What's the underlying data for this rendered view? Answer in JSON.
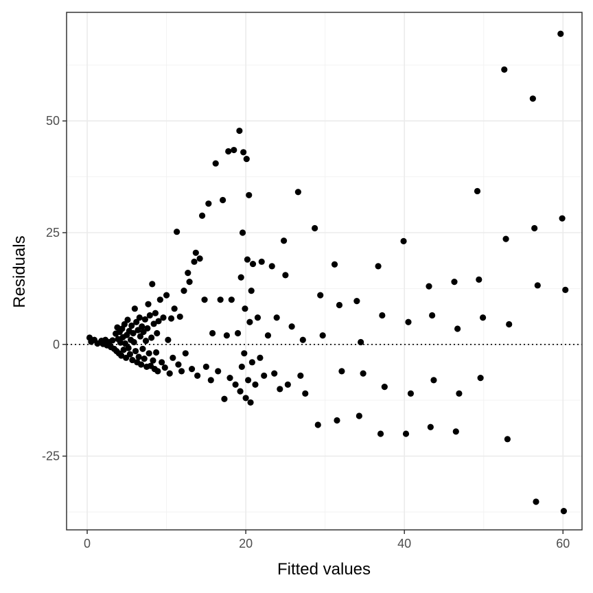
{
  "chart_data": {
    "type": "scatter",
    "title": "",
    "xlabel": "Fitted values",
    "ylabel": "Residuals",
    "xlim": [
      -2.6,
      62.4
    ],
    "ylim": [
      -41.5,
      74.3
    ],
    "x_ticks": [
      0,
      20,
      40,
      60
    ],
    "x_tick_labels": [
      "0",
      "20",
      "40",
      "60"
    ],
    "y_ticks": [
      -25,
      0,
      25,
      50
    ],
    "y_tick_labels": [
      "-25",
      "0",
      "25",
      "50"
    ],
    "grid": true,
    "reference_line": {
      "y": 0,
      "style": "dotted"
    },
    "point_color": "#000000",
    "series": [
      {
        "points": [
          [
            0.3,
            1.5
          ],
          [
            0.5,
            0.6
          ],
          [
            0.9,
            1.0
          ],
          [
            1.3,
            0.2
          ],
          [
            1.8,
            0.8
          ],
          [
            2.0,
            0.1
          ],
          [
            2.3,
            1.0
          ],
          [
            2.5,
            -0.2
          ],
          [
            2.8,
            0.5
          ],
          [
            3.0,
            -0.6
          ],
          [
            3.2,
            0.9
          ],
          [
            3.4,
            -1.0
          ],
          [
            3.6,
            2.4
          ],
          [
            3.7,
            -1.5
          ],
          [
            3.8,
            3.8
          ],
          [
            3.9,
            1.2
          ],
          [
            4.0,
            -2.0
          ],
          [
            4.1,
            2.8
          ],
          [
            4.2,
            0.4
          ],
          [
            4.3,
            -2.5
          ],
          [
            4.4,
            3.5
          ],
          [
            4.5,
            1.6
          ],
          [
            4.6,
            -1.2
          ],
          [
            4.7,
            4.5
          ],
          [
            4.8,
            0.2
          ],
          [
            4.9,
            -3.0
          ],
          [
            5.0,
            2.1
          ],
          [
            5.1,
            5.5
          ],
          [
            5.2,
            -0.8
          ],
          [
            5.3,
            3.0
          ],
          [
            5.4,
            -2.2
          ],
          [
            5.5,
            1.0
          ],
          [
            5.6,
            4.2
          ],
          [
            5.7,
            -3.5
          ],
          [
            5.8,
            2.5
          ],
          [
            5.9,
            0.5
          ],
          [
            6.0,
            8.0
          ],
          [
            6.1,
            -1.5
          ],
          [
            6.2,
            5.0
          ],
          [
            6.3,
            -4.0
          ],
          [
            6.4,
            3.2
          ],
          [
            6.5,
            -2.8
          ],
          [
            6.6,
            6.0
          ],
          [
            6.7,
            1.8
          ],
          [
            6.8,
            -4.5
          ],
          [
            6.9,
            4.0
          ],
          [
            7.0,
            -1.0
          ],
          [
            7.1,
            2.8
          ],
          [
            7.2,
            -3.2
          ],
          [
            7.3,
            5.6
          ],
          [
            7.4,
            0.8
          ],
          [
            7.5,
            -5.0
          ],
          [
            7.6,
            3.6
          ],
          [
            7.7,
            9.0
          ],
          [
            7.8,
            -2.0
          ],
          [
            7.9,
            6.5
          ],
          [
            8.0,
            -4.8
          ],
          [
            8.1,
            1.5
          ],
          [
            8.2,
            13.5
          ],
          [
            8.3,
            -3.6
          ],
          [
            8.4,
            4.6
          ],
          [
            8.5,
            -5.5
          ],
          [
            8.6,
            7.0
          ],
          [
            8.7,
            -1.8
          ],
          [
            8.8,
            2.5
          ],
          [
            8.9,
            -6.0
          ],
          [
            9.0,
            5.2
          ],
          [
            9.2,
            10.0
          ],
          [
            9.4,
            -4.0
          ],
          [
            9.6,
            6.0
          ],
          [
            9.8,
            -5.2
          ],
          [
            10.0,
            11.0
          ],
          [
            10.2,
            1.0
          ],
          [
            10.4,
            -6.5
          ],
          [
            10.6,
            5.8
          ],
          [
            10.8,
            -3.0
          ],
          [
            11.0,
            8.0
          ],
          [
            11.3,
            25.2
          ],
          [
            11.5,
            -4.5
          ],
          [
            11.7,
            6.2
          ],
          [
            11.9,
            -6.0
          ],
          [
            12.2,
            12.0
          ],
          [
            12.4,
            -2.0
          ],
          [
            12.7,
            16.0
          ],
          [
            12.9,
            14.0
          ],
          [
            13.2,
            -5.5
          ],
          [
            13.5,
            18.5
          ],
          [
            13.7,
            20.5
          ],
          [
            13.9,
            -7.0
          ],
          [
            14.2,
            19.2
          ],
          [
            14.5,
            28.8
          ],
          [
            14.8,
            10.0
          ],
          [
            15.0,
            -5.0
          ],
          [
            15.3,
            31.5
          ],
          [
            15.6,
            -8.0
          ],
          [
            15.8,
            2.5
          ],
          [
            16.2,
            40.5
          ],
          [
            16.5,
            -6.0
          ],
          [
            16.8,
            10.0
          ],
          [
            17.1,
            32.3
          ],
          [
            17.3,
            -12.2
          ],
          [
            17.6,
            2.0
          ],
          [
            17.8,
            43.2
          ],
          [
            18.0,
            -7.5
          ],
          [
            18.2,
            10.0
          ],
          [
            18.5,
            43.5
          ],
          [
            18.7,
            -9.0
          ],
          [
            19.0,
            2.5
          ],
          [
            19.2,
            47.8
          ],
          [
            19.3,
            -10.5
          ],
          [
            19.4,
            15.0
          ],
          [
            19.5,
            -5.0
          ],
          [
            19.6,
            25.0
          ],
          [
            19.7,
            43.0
          ],
          [
            19.8,
            -2.0
          ],
          [
            19.9,
            8.0
          ],
          [
            20.0,
            -12.0
          ],
          [
            20.1,
            41.5
          ],
          [
            20.2,
            19.0
          ],
          [
            20.3,
            -8.0
          ],
          [
            20.4,
            33.4
          ],
          [
            20.5,
            5.0
          ],
          [
            20.6,
            -13.0
          ],
          [
            20.7,
            12.0
          ],
          [
            20.8,
            -4.0
          ],
          [
            20.9,
            18.0
          ],
          [
            21.2,
            -9.0
          ],
          [
            21.5,
            6.0
          ],
          [
            21.8,
            -3.0
          ],
          [
            22.0,
            18.5
          ],
          [
            22.3,
            -7.0
          ],
          [
            22.8,
            2.0
          ],
          [
            23.3,
            17.5
          ],
          [
            23.6,
            -6.5
          ],
          [
            23.9,
            6.0
          ],
          [
            24.3,
            -10.0
          ],
          [
            24.8,
            23.2
          ],
          [
            25.0,
            15.5
          ],
          [
            25.3,
            -9.0
          ],
          [
            25.8,
            4.0
          ],
          [
            26.6,
            34.1
          ],
          [
            26.9,
            -7.0
          ],
          [
            27.2,
            1.0
          ],
          [
            27.5,
            -11.0
          ],
          [
            28.7,
            26.0
          ],
          [
            29.1,
            -18.0
          ],
          [
            29.4,
            11.0
          ],
          [
            29.7,
            2.0
          ],
          [
            31.2,
            17.9
          ],
          [
            31.5,
            -17.0
          ],
          [
            31.8,
            8.8
          ],
          [
            32.1,
            -6.0
          ],
          [
            34.0,
            9.7
          ],
          [
            34.3,
            -16.0
          ],
          [
            34.5,
            0.5
          ],
          [
            34.8,
            -6.5
          ],
          [
            36.7,
            17.5
          ],
          [
            37.0,
            -20.0
          ],
          [
            37.2,
            6.5
          ],
          [
            37.5,
            -9.5
          ],
          [
            39.9,
            23.1
          ],
          [
            40.2,
            -20.0
          ],
          [
            40.5,
            5.0
          ],
          [
            40.8,
            -11.0
          ],
          [
            43.1,
            13.0
          ],
          [
            43.3,
            -18.5
          ],
          [
            43.5,
            6.5
          ],
          [
            43.7,
            -8.0
          ],
          [
            46.3,
            14.0
          ],
          [
            46.5,
            -19.5
          ],
          [
            46.7,
            3.5
          ],
          [
            46.9,
            -11.0
          ],
          [
            49.2,
            34.3
          ],
          [
            49.4,
            14.5
          ],
          [
            49.6,
            -7.5
          ],
          [
            49.9,
            6.0
          ],
          [
            52.6,
            61.5
          ],
          [
            52.8,
            23.6
          ],
          [
            53.0,
            -21.2
          ],
          [
            53.2,
            4.5
          ],
          [
            56.2,
            55.0
          ],
          [
            56.4,
            26.0
          ],
          [
            56.6,
            -35.2
          ],
          [
            56.8,
            13.2
          ],
          [
            59.7,
            69.5
          ],
          [
            59.9,
            28.2
          ],
          [
            60.1,
            -37.3
          ],
          [
            60.3,
            12.2
          ]
        ]
      }
    ]
  }
}
